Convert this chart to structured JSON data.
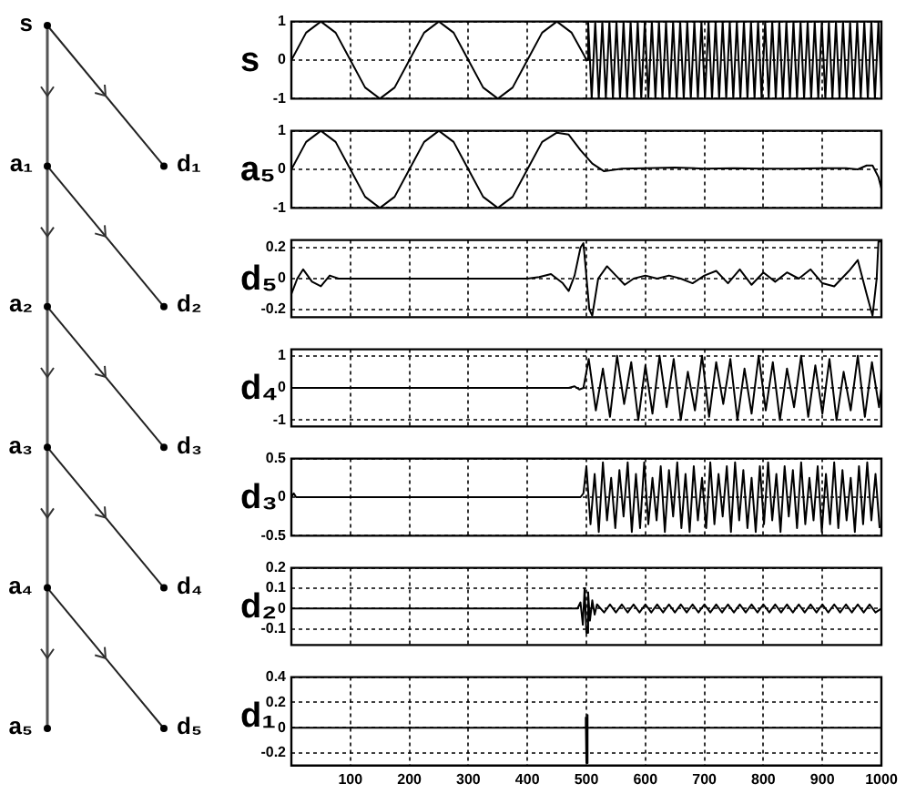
{
  "chart_data": [
    {
      "type": "other",
      "annotations": [
        "s",
        "a₁",
        "a₂",
        "a₃",
        "a₄",
        "a₅",
        "d₁",
        "d₂",
        "d₃",
        "d₄",
        "d₅"
      ]
    },
    {
      "type": "line",
      "ylabel": "s",
      "xlim": [
        0,
        1000
      ],
      "xticks": [
        100,
        200,
        300,
        400,
        500,
        600,
        700,
        800,
        900,
        1000
      ],
      "ylim": [
        -1,
        1
      ],
      "yticks": [
        -1,
        0,
        1
      ],
      "grid": true,
      "legend": false,
      "tick_labels": "y",
      "marker": "none",
      "line_style": "solid",
      "series": [
        {
          "color": "#000000",
          "x": [
            0,
            25,
            50,
            75,
            100,
            125,
            150,
            175,
            200,
            225,
            250,
            275,
            300,
            325,
            350,
            375,
            400,
            425,
            450,
            475,
            497,
            500,
            503,
            509,
            515,
            521,
            527,
            533,
            539,
            545,
            551,
            557,
            563,
            569,
            575,
            581,
            587,
            593,
            599,
            605,
            611,
            617,
            623,
            629,
            635,
            641,
            647,
            653,
            659,
            665,
            671,
            677,
            683,
            689,
            695,
            701,
            707,
            713,
            719,
            725,
            731,
            737,
            743,
            749,
            755,
            761,
            767,
            773,
            779,
            785,
            791,
            797,
            803,
            809,
            815,
            821,
            827,
            833,
            839,
            845,
            851,
            857,
            863,
            869,
            875,
            881,
            887,
            893,
            899,
            905,
            911,
            917,
            923,
            929,
            935,
            941,
            947,
            953,
            959,
            965,
            971,
            977,
            983,
            989,
            995,
            1000
          ],
          "values": [
            0,
            0.71,
            1,
            0.71,
            0,
            -0.71,
            -1,
            -0.71,
            0,
            0.71,
            1,
            0.71,
            0,
            -0.71,
            -1,
            -0.71,
            0,
            0.71,
            1,
            0.71,
            0.1,
            0,
            1,
            -1,
            1,
            -1,
            1,
            -1,
            1,
            -1,
            1,
            -1,
            1,
            -1,
            1,
            -1,
            1,
            -1,
            1,
            -1,
            1,
            -1,
            1,
            -1,
            1,
            -1,
            1,
            -1,
            1,
            -1,
            1,
            -1,
            1,
            -1,
            1,
            -1,
            1,
            -1,
            1,
            -1,
            1,
            -1,
            1,
            -1,
            1,
            -1,
            1,
            -1,
            1,
            -1,
            1,
            -1,
            1,
            -1,
            1,
            -1,
            1,
            -1,
            1,
            -1,
            1,
            -1,
            1,
            -1,
            1,
            -1,
            1,
            -1,
            1,
            -1,
            1,
            -1,
            1,
            -1,
            1,
            -1,
            1,
            -1,
            1,
            -1,
            1,
            -1,
            1,
            -1,
            1,
            -0.8
          ]
        }
      ]
    },
    {
      "type": "line",
      "ylabel": "a₅",
      "xlim": [
        0,
        1000
      ],
      "xticks": [
        100,
        200,
        300,
        400,
        500,
        600,
        700,
        800,
        900,
        1000
      ],
      "ylim": [
        -1,
        1
      ],
      "yticks": [
        -1,
        0,
        1
      ],
      "grid": true,
      "legend": false,
      "tick_labels": "y",
      "marker": "none",
      "line_style": "solid",
      "series": [
        {
          "color": "#000000",
          "x": [
            0,
            25,
            50,
            75,
            100,
            125,
            150,
            175,
            200,
            225,
            250,
            275,
            300,
            325,
            350,
            375,
            400,
            425,
            450,
            470,
            490,
            510,
            530,
            560,
            600,
            650,
            700,
            750,
            800,
            850,
            900,
            940,
            960,
            975,
            985,
            995,
            1000
          ],
          "values": [
            0,
            0.71,
            1,
            0.71,
            0,
            -0.71,
            -1,
            -0.71,
            0,
            0.71,
            1,
            0.71,
            0,
            -0.71,
            -1,
            -0.71,
            0,
            0.71,
            0.95,
            0.9,
            0.5,
            0.15,
            -0.05,
            0.02,
            0.03,
            0.05,
            0.02,
            0.03,
            0.02,
            0.02,
            0.03,
            0.03,
            0,
            0.1,
            0.1,
            -0.2,
            -0.5
          ]
        }
      ]
    },
    {
      "type": "line",
      "ylabel": "d₅",
      "xlim": [
        0,
        1000
      ],
      "xticks": [
        100,
        200,
        300,
        400,
        500,
        600,
        700,
        800,
        900,
        1000
      ],
      "ylim": [
        -0.25,
        0.25
      ],
      "yticks": [
        -0.2,
        0,
        0.2
      ],
      "grid": true,
      "legend": false,
      "tick_labels": "y",
      "marker": "none",
      "line_style": "solid",
      "series": [
        {
          "color": "#000000",
          "x": [
            0,
            10,
            20,
            35,
            50,
            65,
            80,
            150,
            250,
            350,
            400,
            420,
            440,
            460,
            470,
            480,
            490,
            495,
            505,
            510,
            520,
            535,
            550,
            565,
            580,
            600,
            620,
            640,
            660,
            680,
            700,
            720,
            740,
            760,
            780,
            800,
            820,
            840,
            860,
            880,
            900,
            920,
            945,
            960,
            975,
            985,
            992,
            995,
            1000
          ],
          "values": [
            -0.1,
            0,
            0.06,
            -0.02,
            -0.05,
            0.02,
            0,
            0,
            0,
            0,
            0,
            0.01,
            0.03,
            -0.03,
            -0.08,
            0.02,
            0.2,
            0.23,
            -0.2,
            -0.24,
            0,
            0.08,
            0.02,
            -0.04,
            0,
            0.02,
            0,
            0.02,
            0,
            -0.03,
            0.02,
            0.05,
            -0.03,
            0.06,
            -0.04,
            0.04,
            -0.02,
            0.04,
            0,
            0.06,
            -0.03,
            -0.05,
            0.05,
            0.12,
            -0.1,
            -0.24,
            0,
            0.24,
            0.24
          ]
        }
      ]
    },
    {
      "type": "line",
      "ylabel": "d₄",
      "xlim": [
        0,
        1000
      ],
      "xticks": [
        100,
        200,
        300,
        400,
        500,
        600,
        700,
        800,
        900,
        1000
      ],
      "ylim": [
        -1.2,
        1.2
      ],
      "yticks": [
        -1,
        0,
        1
      ],
      "grid": true,
      "legend": false,
      "tick_labels": "y",
      "marker": "none",
      "line_style": "solid",
      "series": [
        {
          "color": "#000000",
          "x": [
            0,
            470,
            480,
            488,
            495,
            504,
            516,
            528,
            540,
            552,
            564,
            576,
            588,
            600,
            612,
            624,
            636,
            648,
            660,
            672,
            684,
            696,
            708,
            720,
            732,
            744,
            756,
            768,
            780,
            792,
            804,
            816,
            828,
            840,
            852,
            864,
            876,
            888,
            900,
            912,
            924,
            936,
            948,
            960,
            972,
            984,
            996,
            1000
          ],
          "values": [
            0,
            0,
            0.05,
            -0.05,
            0,
            0.9,
            -0.7,
            0.6,
            -0.9,
            1,
            -0.5,
            0.8,
            -1,
            0.7,
            -0.8,
            1,
            -0.6,
            0.9,
            -1,
            0.5,
            -0.7,
            1,
            -0.9,
            0.8,
            -0.5,
            0.9,
            -1,
            0.6,
            -0.8,
            1,
            -0.7,
            0.8,
            -1,
            0.6,
            -0.6,
            1,
            -0.9,
            0.7,
            -0.8,
            0.9,
            -1,
            0.5,
            -0.7,
            1,
            -0.9,
            0.8,
            -0.6,
            0
          ]
        }
      ]
    },
    {
      "type": "line",
      "ylabel": "d₃",
      "xlim": [
        0,
        1000
      ],
      "xticks": [
        100,
        200,
        300,
        400,
        500,
        600,
        700,
        800,
        900,
        1000
      ],
      "ylim": [
        -0.5,
        0.5
      ],
      "yticks": [
        -0.5,
        0,
        0.5
      ],
      "grid": true,
      "legend": false,
      "tick_labels": "y",
      "marker": "none",
      "line_style": "solid",
      "series": [
        {
          "color": "#000000",
          "x": [
            0,
            4,
            8,
            490,
            495,
            500,
            507,
            514,
            521,
            528,
            535,
            542,
            549,
            556,
            563,
            570,
            577,
            584,
            591,
            598,
            605,
            612,
            619,
            626,
            633,
            640,
            647,
            654,
            661,
            668,
            675,
            682,
            689,
            696,
            703,
            710,
            717,
            724,
            731,
            738,
            745,
            752,
            759,
            766,
            773,
            780,
            787,
            794,
            801,
            808,
            815,
            822,
            829,
            836,
            843,
            850,
            857,
            864,
            871,
            878,
            885,
            892,
            899,
            906,
            913,
            920,
            927,
            934,
            941,
            948,
            955,
            962,
            969,
            976,
            983,
            990,
            997
          ],
          "values": [
            0,
            0.05,
            0,
            0,
            0.05,
            0.4,
            -0.35,
            0.3,
            -0.45,
            0.45,
            -0.3,
            0.25,
            -0.4,
            0.35,
            -0.25,
            0.45,
            -0.45,
            0.3,
            -0.4,
            0.45,
            -0.35,
            0.25,
            -0.3,
            0.4,
            -0.45,
            0.35,
            -0.25,
            0.45,
            -0.4,
            0.3,
            -0.45,
            0.4,
            -0.3,
            0.25,
            -0.4,
            0.45,
            -0.35,
            0.3,
            -0.25,
            0.4,
            -0.45,
            0.45,
            -0.3,
            0.35,
            -0.4,
            0.25,
            -0.45,
            0.4,
            -0.35,
            0.45,
            -0.3,
            0.3,
            -0.45,
            0.4,
            -0.25,
            0.35,
            -0.4,
            0.45,
            -0.35,
            0.25,
            -0.3,
            0.4,
            -0.45,
            0.3,
            -0.35,
            0.45,
            -0.4,
            0.35,
            -0.3,
            0.25,
            -0.45,
            0.4,
            -0.35,
            0.45,
            -0.3,
            0.3,
            -0.4
          ]
        }
      ]
    },
    {
      "type": "line",
      "ylabel": "d₂",
      "xlim": [
        0,
        1000
      ],
      "xticks": [
        100,
        200,
        300,
        400,
        500,
        600,
        700,
        800,
        900,
        1000
      ],
      "ylim": [
        -0.18,
        0.2
      ],
      "yticks": [
        -0.1,
        0,
        0.1,
        0.2
      ],
      "grid": true,
      "legend": false,
      "tick_labels": "y",
      "marker": "none",
      "line_style": "solid",
      "series": [
        {
          "color": "#000000",
          "x": [
            0,
            485,
            490,
            494,
            497,
            500,
            503,
            506,
            510,
            514,
            518,
            530,
            540,
            550,
            560,
            570,
            580,
            590,
            600,
            610,
            620,
            630,
            640,
            650,
            660,
            670,
            680,
            690,
            700,
            710,
            720,
            730,
            740,
            750,
            760,
            770,
            780,
            790,
            800,
            810,
            820,
            830,
            840,
            850,
            860,
            870,
            880,
            890,
            900,
            910,
            920,
            930,
            940,
            950,
            960,
            970,
            980,
            990,
            1000
          ],
          "values": [
            0,
            0,
            0.03,
            -0.08,
            0.1,
            -0.12,
            0.08,
            -0.06,
            0.04,
            -0.03,
            0.02,
            -0.02,
            0.02,
            -0.02,
            0.02,
            -0.02,
            0.02,
            -0.02,
            0.02,
            -0.02,
            0.02,
            -0.02,
            0.02,
            -0.02,
            0.02,
            -0.02,
            0.02,
            -0.02,
            0.02,
            -0.02,
            0.02,
            -0.02,
            0.02,
            -0.02,
            0.02,
            -0.02,
            0.02,
            -0.02,
            0.02,
            -0.02,
            0.02,
            -0.02,
            0.02,
            -0.02,
            0.02,
            -0.02,
            0.02,
            -0.02,
            0.02,
            -0.02,
            0.02,
            -0.02,
            0.02,
            -0.02,
            0.02,
            -0.02,
            0.02,
            -0.02,
            0
          ]
        }
      ]
    },
    {
      "type": "line",
      "ylabel": "d₁",
      "xlim": [
        0,
        1000
      ],
      "xticks": [
        100,
        200,
        300,
        400,
        500,
        600,
        700,
        800,
        900,
        1000
      ],
      "ylim": [
        -0.3,
        0.4
      ],
      "yticks": [
        -0.2,
        0,
        0.2,
        0.4
      ],
      "grid": true,
      "legend": false,
      "marker": "none",
      "line_style": "solid",
      "series": [
        {
          "color": "#000000",
          "x": [
            0,
            497,
            499,
            500,
            501,
            503,
            1000
          ],
          "values": [
            0,
            0,
            0.08,
            -0.28,
            0.1,
            0,
            0
          ]
        }
      ]
    }
  ]
}
